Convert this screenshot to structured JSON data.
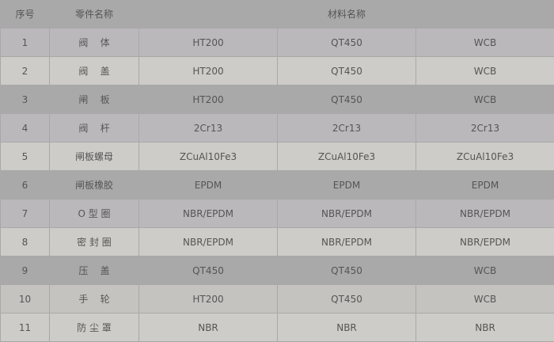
{
  "headers": {
    "index": "序号",
    "part": "零件名称",
    "material": "材料名称"
  },
  "rows": [
    {
      "no": "1",
      "part": "阀    体",
      "m1": "HT200",
      "m2": "QT450",
      "m3": "WCB"
    },
    {
      "no": "2",
      "part": "阀    盖",
      "m1": "HT200",
      "m2": "QT450",
      "m3": "WCB"
    },
    {
      "no": "3",
      "part": "闸    板",
      "m1": "HT200",
      "m2": "QT450",
      "m3": "WCB"
    },
    {
      "no": "4",
      "part": "阀    杆",
      "m1": "2Cr13",
      "m2": "2Cr13",
      "m3": "2Cr13"
    },
    {
      "no": "5",
      "part": "闸板螺母",
      "m1": "ZCuAl10Fe3",
      "m2": "ZCuAl10Fe3",
      "m3": "ZCuAl10Fe3"
    },
    {
      "no": "6",
      "part": "闸板橡胶",
      "m1": "EPDM",
      "m2": "EPDM",
      "m3": "EPDM"
    },
    {
      "no": "7",
      "part": "O 型 圈",
      "m1": "NBR/EPDM",
      "m2": "NBR/EPDM",
      "m3": "NBR/EPDM"
    },
    {
      "no": "8",
      "part": "密 封 圈",
      "m1": "NBR/EPDM",
      "m2": "NBR/EPDM",
      "m3": "NBR/EPDM"
    },
    {
      "no": "9",
      "part": "压    盖",
      "m1": "QT450",
      "m2": "QT450",
      "m3": "WCB"
    },
    {
      "no": "10",
      "part": "手    轮",
      "m1": "HT200",
      "m2": "QT450",
      "m3": "WCB"
    },
    {
      "no": "11",
      "part": "防 尘 罩",
      "m1": "NBR",
      "m2": "NBR",
      "m3": "NBR"
    }
  ]
}
